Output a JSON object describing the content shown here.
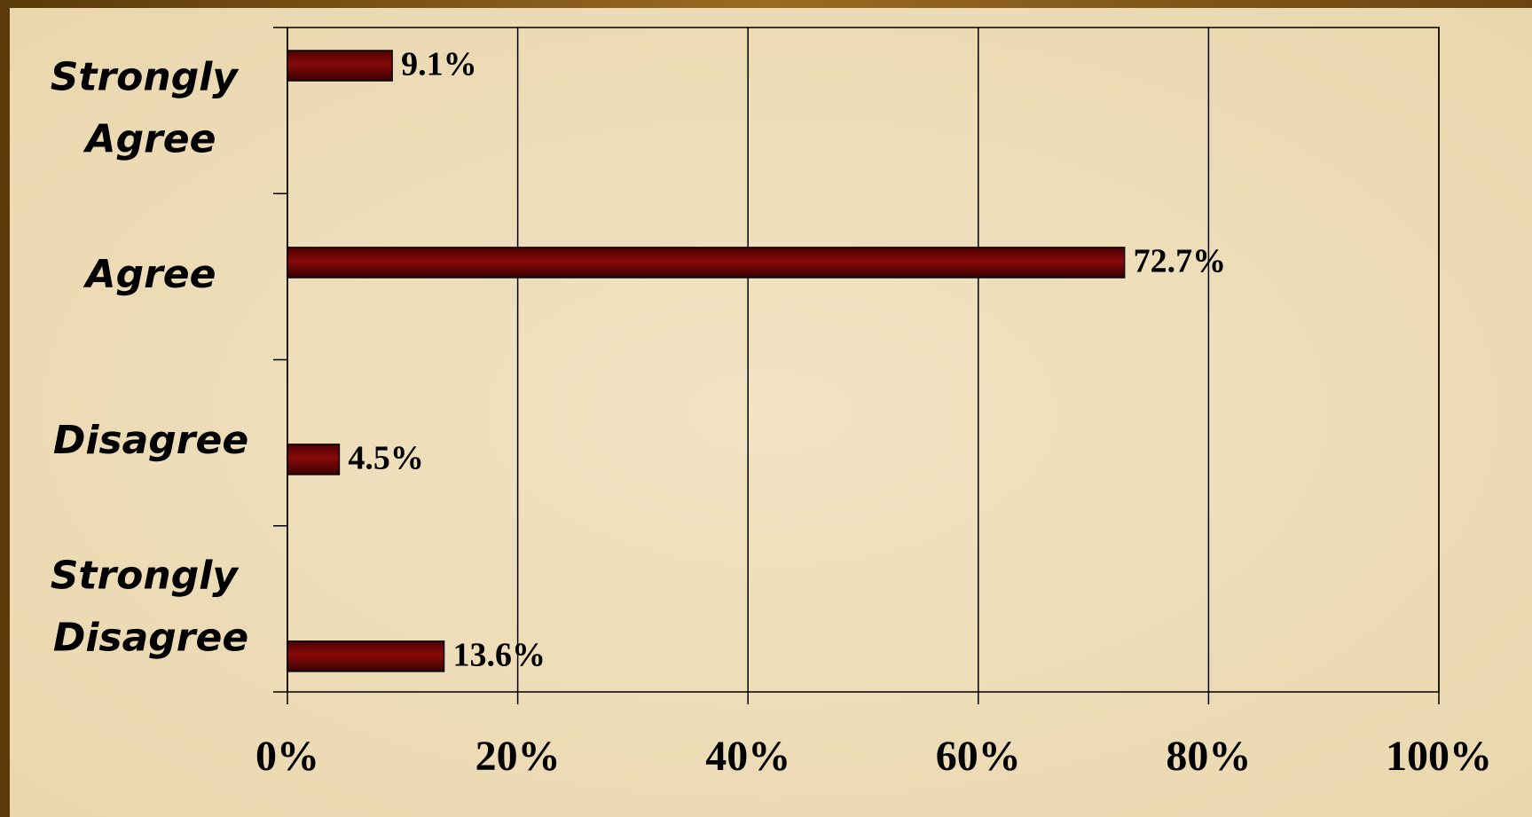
{
  "chart_data": {
    "type": "bar",
    "orientation": "horizontal",
    "categories": [
      "Strongly Agree",
      "Agree",
      "Disagree",
      "Strongly Disagree"
    ],
    "values": [
      9.1,
      72.7,
      4.5,
      13.6
    ],
    "value_labels": [
      "9.1%",
      "72.7%",
      "4.5%",
      "13.6%"
    ],
    "color": "#6e0000",
    "xlim": [
      0,
      100
    ],
    "xticks": [
      {
        "value": 0,
        "label": "0%"
      },
      {
        "value": 20,
        "label": "20%"
      },
      {
        "value": 40,
        "label": "40%"
      },
      {
        "value": 60,
        "label": "60%"
      },
      {
        "value": 80,
        "label": "80%"
      },
      {
        "value": 100,
        "label": "100%"
      }
    ],
    "grid": true
  }
}
